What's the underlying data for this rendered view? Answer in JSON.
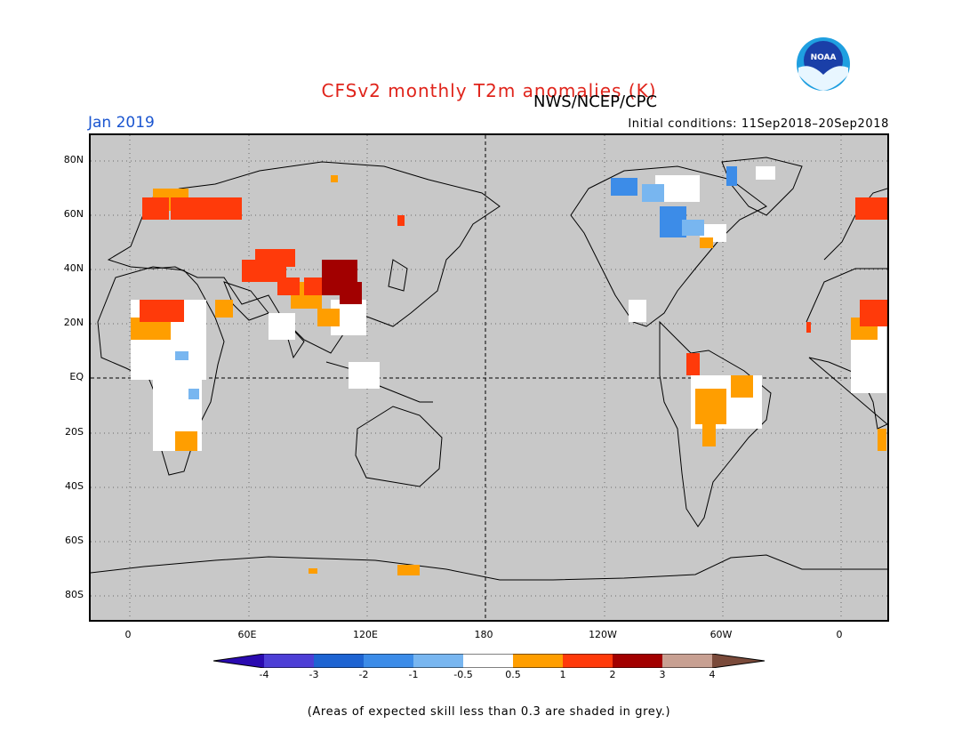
{
  "header": {
    "title": "CFSv2 monthly T2m anomalies (K)",
    "center": "NWS/NCEP/CPC",
    "month": "Jan 2019",
    "initial_conditions": "Initial conditions: 11Sep2018–20Sep2018"
  },
  "map": {
    "lat_ticks": [
      "80N",
      "60N",
      "40N",
      "20N",
      "EQ",
      "20S",
      "40S",
      "60S",
      "80S"
    ],
    "lon_ticks": [
      "0",
      "60E",
      "120E",
      "180",
      "120W",
      "60W",
      "0"
    ],
    "background_color": "#c8c8c8"
  },
  "legend": {
    "labels": [
      "-4",
      "-3",
      "-2",
      "-1",
      "-0.5",
      "0.5",
      "1",
      "2",
      "3",
      "4"
    ],
    "colors": [
      "#2a0ab0",
      "#4d3fd6",
      "#1e64d2",
      "#3c8ce8",
      "#78b6f0",
      "#ffffff",
      "#ff9e00",
      "#ff3a0a",
      "#a20000",
      "#c8a092",
      "#7a4a3a"
    ]
  },
  "footnote": "(Areas of expected skill less than 0.3 are shaded in grey.)",
  "logo_text": "NOAA"
}
